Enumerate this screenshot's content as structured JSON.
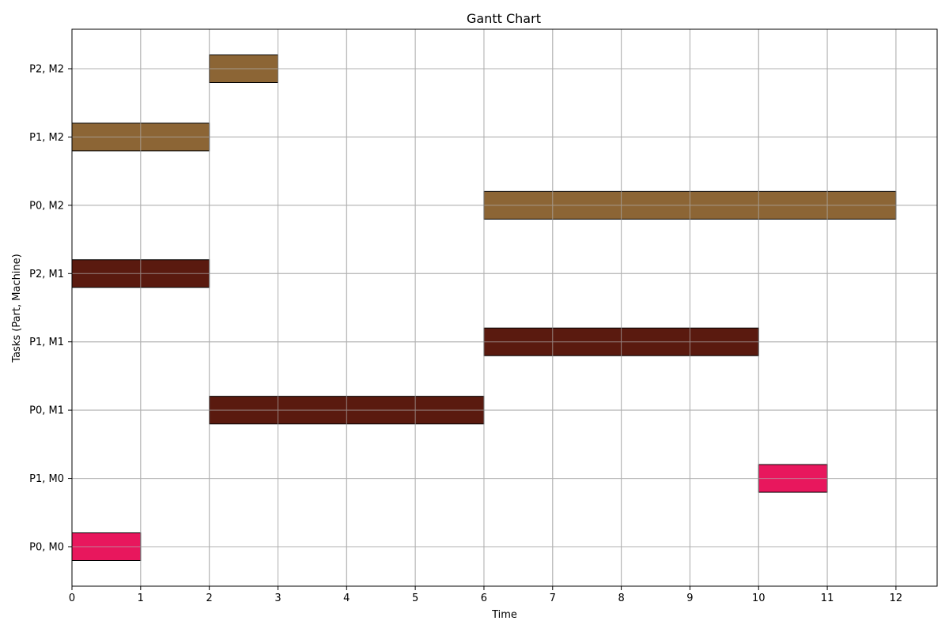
{
  "chart_data": {
    "type": "gantt",
    "title": "Gantt Chart",
    "xlabel": "Time",
    "ylabel": "Tasks (Part, Machine)",
    "xlim": [
      0,
      12.6
    ],
    "xticks": [
      0,
      1,
      2,
      3,
      4,
      5,
      6,
      7,
      8,
      9,
      10,
      11,
      12
    ],
    "grid": true,
    "categories": [
      "P0, M0",
      "P1, M0",
      "P0, M1",
      "P1, M1",
      "P2, M1",
      "P0, M2",
      "P1, M2",
      "P2, M2"
    ],
    "machine_colors": {
      "M0": "#e8175d",
      "M1": "#5a1a0f",
      "M2": "#8c6535"
    },
    "tasks": [
      {
        "label": "P0, M0",
        "machine": "M0",
        "start": 0,
        "end": 1
      },
      {
        "label": "P1, M0",
        "machine": "M0",
        "start": 10,
        "end": 11
      },
      {
        "label": "P0, M1",
        "machine": "M1",
        "start": 2,
        "end": 6
      },
      {
        "label": "P1, M1",
        "machine": "M1",
        "start": 6,
        "end": 10
      },
      {
        "label": "P2, M1",
        "machine": "M1",
        "start": 0,
        "end": 2
      },
      {
        "label": "P0, M2",
        "machine": "M2",
        "start": 6,
        "end": 12
      },
      {
        "label": "P1, M2",
        "machine": "M2",
        "start": 0,
        "end": 2
      },
      {
        "label": "P2, M2",
        "machine": "M2",
        "start": 2,
        "end": 3
      }
    ]
  }
}
